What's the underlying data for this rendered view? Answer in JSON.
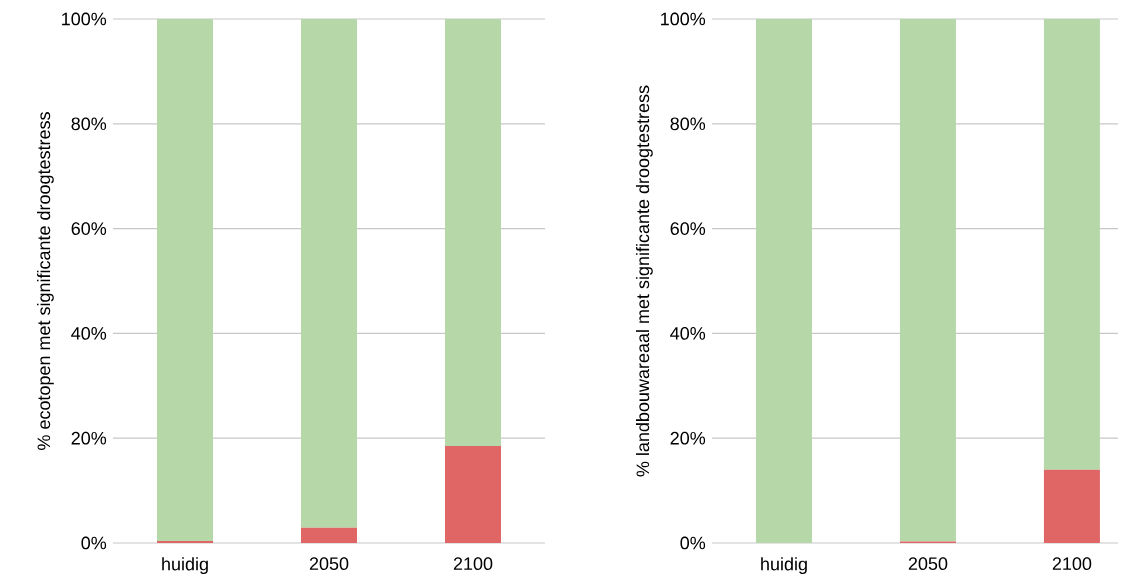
{
  "chart_data": [
    {
      "type": "bar",
      "stacked": true,
      "ylabel": "% ecotopen met significante droogtestress",
      "categories": [
        "huidig",
        "2050",
        "2100"
      ],
      "series": [
        {
          "color": "#e06666",
          "values": [
            0.4,
            2.9,
            18.5
          ]
        },
        {
          "color": "#b6d7a8",
          "values": [
            99.6,
            97.1,
            81.5
          ]
        }
      ],
      "ylim": [
        0,
        100
      ],
      "yticks": [
        {
          "value": 0,
          "label": "0%"
        },
        {
          "value": 20,
          "label": "20%"
        },
        {
          "value": 40,
          "label": "40%"
        },
        {
          "value": 60,
          "label": "60%"
        },
        {
          "value": 80,
          "label": "80%"
        },
        {
          "value": 100,
          "label": "100%"
        }
      ],
      "grid": "y"
    },
    {
      "type": "bar",
      "stacked": true,
      "ylabel": "% landbouwareaal met significante droogtestress",
      "categories": [
        "huidig",
        "2050",
        "2100"
      ],
      "series": [
        {
          "color": "#e06666",
          "values": [
            0,
            0.3,
            14
          ]
        },
        {
          "color": "#b6d7a8",
          "values": [
            100,
            99.7,
            86
          ]
        }
      ],
      "ylim": [
        0,
        100
      ],
      "yticks": [
        {
          "value": 0,
          "label": "0%"
        },
        {
          "value": 20,
          "label": "20%"
        },
        {
          "value": 40,
          "label": "40%"
        },
        {
          "value": 60,
          "label": "60%"
        },
        {
          "value": 80,
          "label": "80%"
        },
        {
          "value": 100,
          "label": "100%"
        }
      ],
      "grid": "y"
    }
  ]
}
